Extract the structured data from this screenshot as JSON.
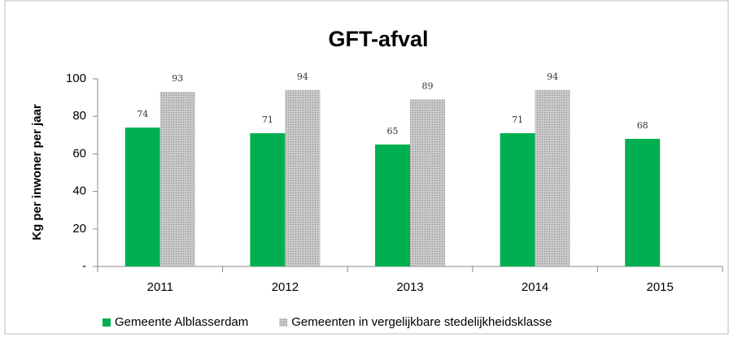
{
  "chart_data": {
    "type": "bar",
    "title": "GFT-afval",
    "y_label": "Kg per inwoner per jaar",
    "categories": [
      "2011",
      "2012",
      "2013",
      "2014",
      "2015"
    ],
    "series": [
      {
        "name": "Gemeente Alblasserdam",
        "color": "#00b050",
        "values": [
          74,
          71,
          65,
          71,
          68
        ]
      },
      {
        "name": "Gemeenten in vergelijkbare stedelijkheidsklasse",
        "color": "#b0b0b0",
        "values": [
          93,
          94,
          89,
          94,
          null
        ]
      }
    ],
    "ylim": [
      0,
      100
    ],
    "yticks": [
      {
        "value": 0,
        "label": "-"
      },
      20,
      40,
      60,
      80,
      100
    ],
    "grid": false,
    "legend": "bottom"
  }
}
